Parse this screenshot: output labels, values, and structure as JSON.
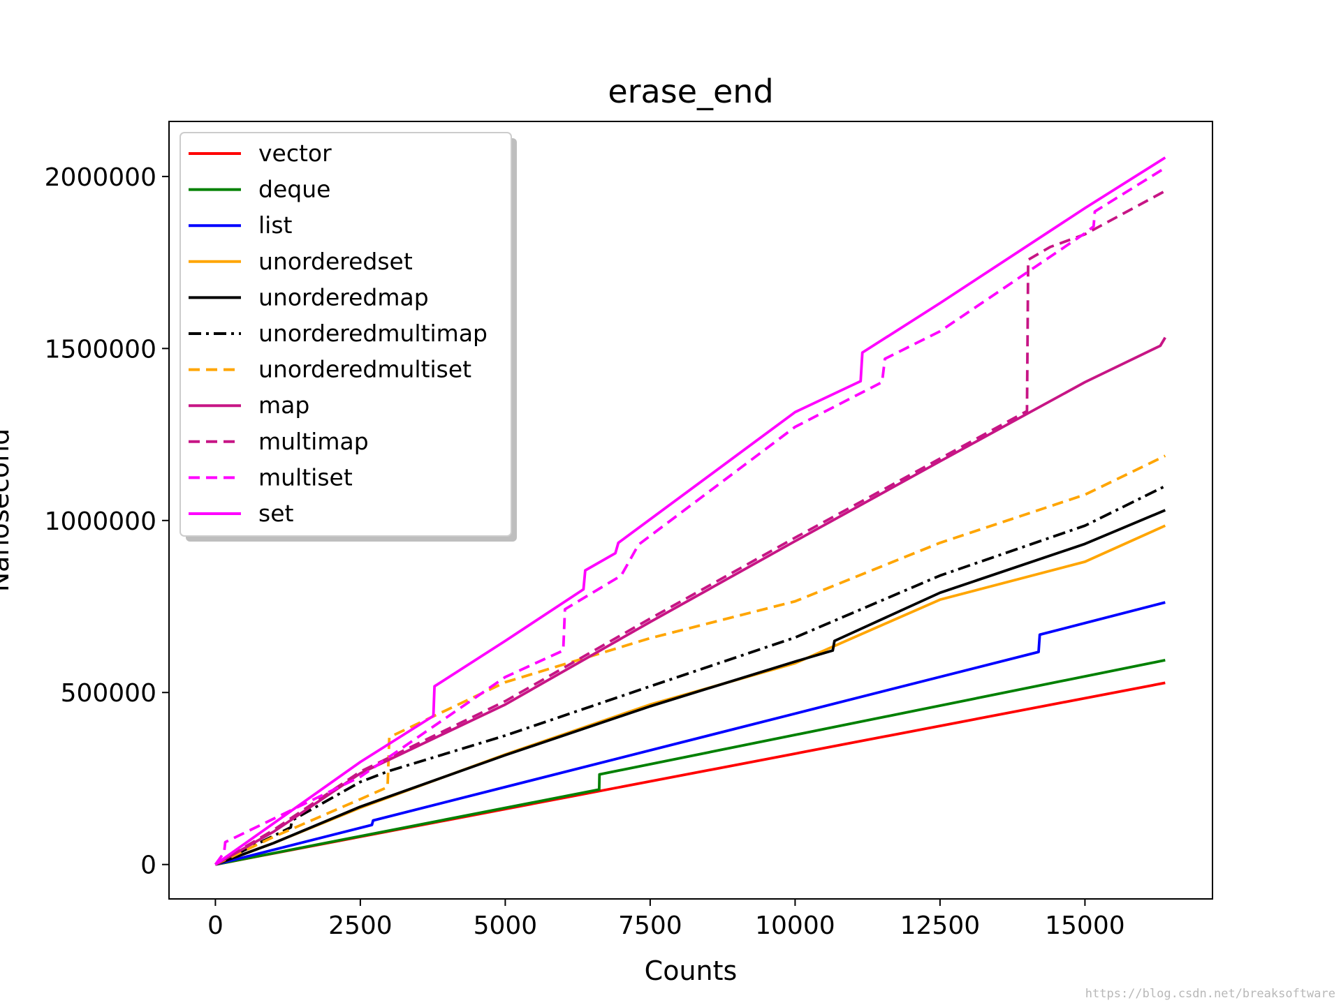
{
  "chart_data": {
    "type": "line",
    "title": "erase_end",
    "xlabel": "Counts",
    "ylabel": "Nanosecond",
    "xlim": [
      -800,
      17200
    ],
    "ylim": [
      -100000,
      2160000
    ],
    "xticks": [
      0,
      2500,
      5000,
      7500,
      10000,
      12500,
      15000
    ],
    "yticks": [
      0,
      500000,
      1000000,
      1500000,
      2000000
    ],
    "legend_position": "top-left",
    "grid": false,
    "series": [
      {
        "name": "vector",
        "color": "#ff0000",
        "style": "solid",
        "x": [
          0,
          16384
        ],
        "y": [
          0,
          528000
        ]
      },
      {
        "name": "deque",
        "color": "#008000",
        "style": "solid",
        "x": [
          0,
          6620,
          6625,
          16384
        ],
        "y": [
          0,
          218000,
          262000,
          594000
        ]
      },
      {
        "name": "list",
        "color": "#0000ff",
        "style": "solid",
        "x": [
          0,
          2700,
          2720,
          14200,
          14220,
          16384
        ],
        "y": [
          0,
          115000,
          128000,
          618000,
          668000,
          762000
        ]
      },
      {
        "name": "unorderedset",
        "color": "#ffa500",
        "style": "solid",
        "x": [
          0,
          1000,
          2500,
          5000,
          7500,
          10000,
          12500,
          15000,
          16384
        ],
        "y": [
          0,
          62000,
          165000,
          320000,
          465000,
          585000,
          770000,
          880000,
          985000
        ]
      },
      {
        "name": "unorderedmap",
        "color": "#000000",
        "style": "solid",
        "x": [
          0,
          1000,
          2500,
          5000,
          7500,
          10000,
          10650,
          10680,
          12500,
          15000,
          16384
        ],
        "y": [
          0,
          62000,
          168000,
          318000,
          460000,
          590000,
          622000,
          650000,
          790000,
          932000,
          1030000
        ]
      },
      {
        "name": "unorderedmultimap",
        "color": "#000000",
        "style": "dashdot",
        "x": [
          0,
          1300,
          1320,
          2500,
          3000,
          5000,
          7500,
          10000,
          12500,
          15000,
          16384
        ],
        "y": [
          0,
          108000,
          128000,
          240000,
          272000,
          375000,
          518000,
          660000,
          840000,
          985000,
          1100000
        ]
      },
      {
        "name": "unorderedmultiset",
        "color": "#ffa500",
        "style": "dashed",
        "x": [
          0,
          1000,
          2500,
          2970,
          3000,
          5000,
          7500,
          10000,
          12500,
          15000,
          16384
        ],
        "y": [
          0,
          80000,
          190000,
          225000,
          370000,
          530000,
          658000,
          765000,
          935000,
          1075000,
          1188000
        ]
      },
      {
        "name": "map",
        "color": "#c71585",
        "style": "solid",
        "x": [
          0,
          1000,
          2500,
          5000,
          7500,
          10000,
          12500,
          15000,
          16300,
          16384
        ],
        "y": [
          0,
          95000,
          265000,
          465000,
          705000,
          940000,
          1172000,
          1402000,
          1508000,
          1532000
        ]
      },
      {
        "name": "multimap",
        "color": "#c71585",
        "style": "dashed",
        "x": [
          0,
          1000,
          2500,
          5000,
          7500,
          10000,
          12500,
          14000,
          14020,
          14400,
          15000,
          16384
        ],
        "y": [
          0,
          100000,
          270000,
          475000,
          715000,
          950000,
          1180000,
          1318000,
          1758000,
          1795000,
          1832000,
          1958000
        ]
      },
      {
        "name": "multiset",
        "color": "#ff00ff",
        "style": "dashed",
        "x": [
          0,
          150,
          170,
          2500,
          5000,
          6000,
          6030,
          7000,
          7300,
          10000,
          11500,
          11550,
          12500,
          15000,
          15150,
          15170,
          16384
        ],
        "y": [
          0,
          35000,
          65000,
          255000,
          545000,
          622000,
          742000,
          840000,
          930000,
          1272000,
          1402000,
          1470000,
          1550000,
          1835000,
          1855000,
          1898000,
          2025000
        ]
      },
      {
        "name": "set",
        "color": "#ff00ff",
        "style": "solid",
        "x": [
          0,
          2500,
          3760,
          3780,
          5000,
          6350,
          6380,
          6900,
          6950,
          10000,
          11130,
          11160,
          12500,
          15000,
          16384
        ],
        "y": [
          0,
          298000,
          432000,
          518000,
          650000,
          800000,
          855000,
          905000,
          935000,
          1315000,
          1405000,
          1488000,
          1632000,
          1908000,
          2055000
        ]
      }
    ]
  },
  "watermark": "https://blog.csdn.net/breaksoftware"
}
